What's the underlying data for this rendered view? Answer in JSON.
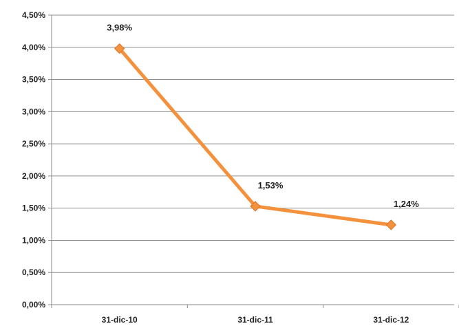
{
  "chart_data": {
    "type": "line",
    "categories": [
      "31-dic-10",
      "31-dic-11",
      "31-dic-12"
    ],
    "series": [
      {
        "values": [
          3.98,
          1.53,
          1.24
        ],
        "labels": [
          "3,98%",
          "1,53%",
          "1,24%"
        ],
        "color": "#F4913C"
      }
    ],
    "y_ticks": [
      "0,00%",
      "0,50%",
      "1,00%",
      "1,50%",
      "2,00%",
      "2,50%",
      "3,00%",
      "3,50%",
      "4,00%",
      "4,50%"
    ],
    "ylim": [
      0,
      4.5
    ],
    "grid": true,
    "marker": "diamond",
    "colors": {
      "line": "#F4913C",
      "marker_stroke": "#D9762A",
      "grid": "#8c8c8c",
      "axis": "#8c8c8c"
    }
  }
}
